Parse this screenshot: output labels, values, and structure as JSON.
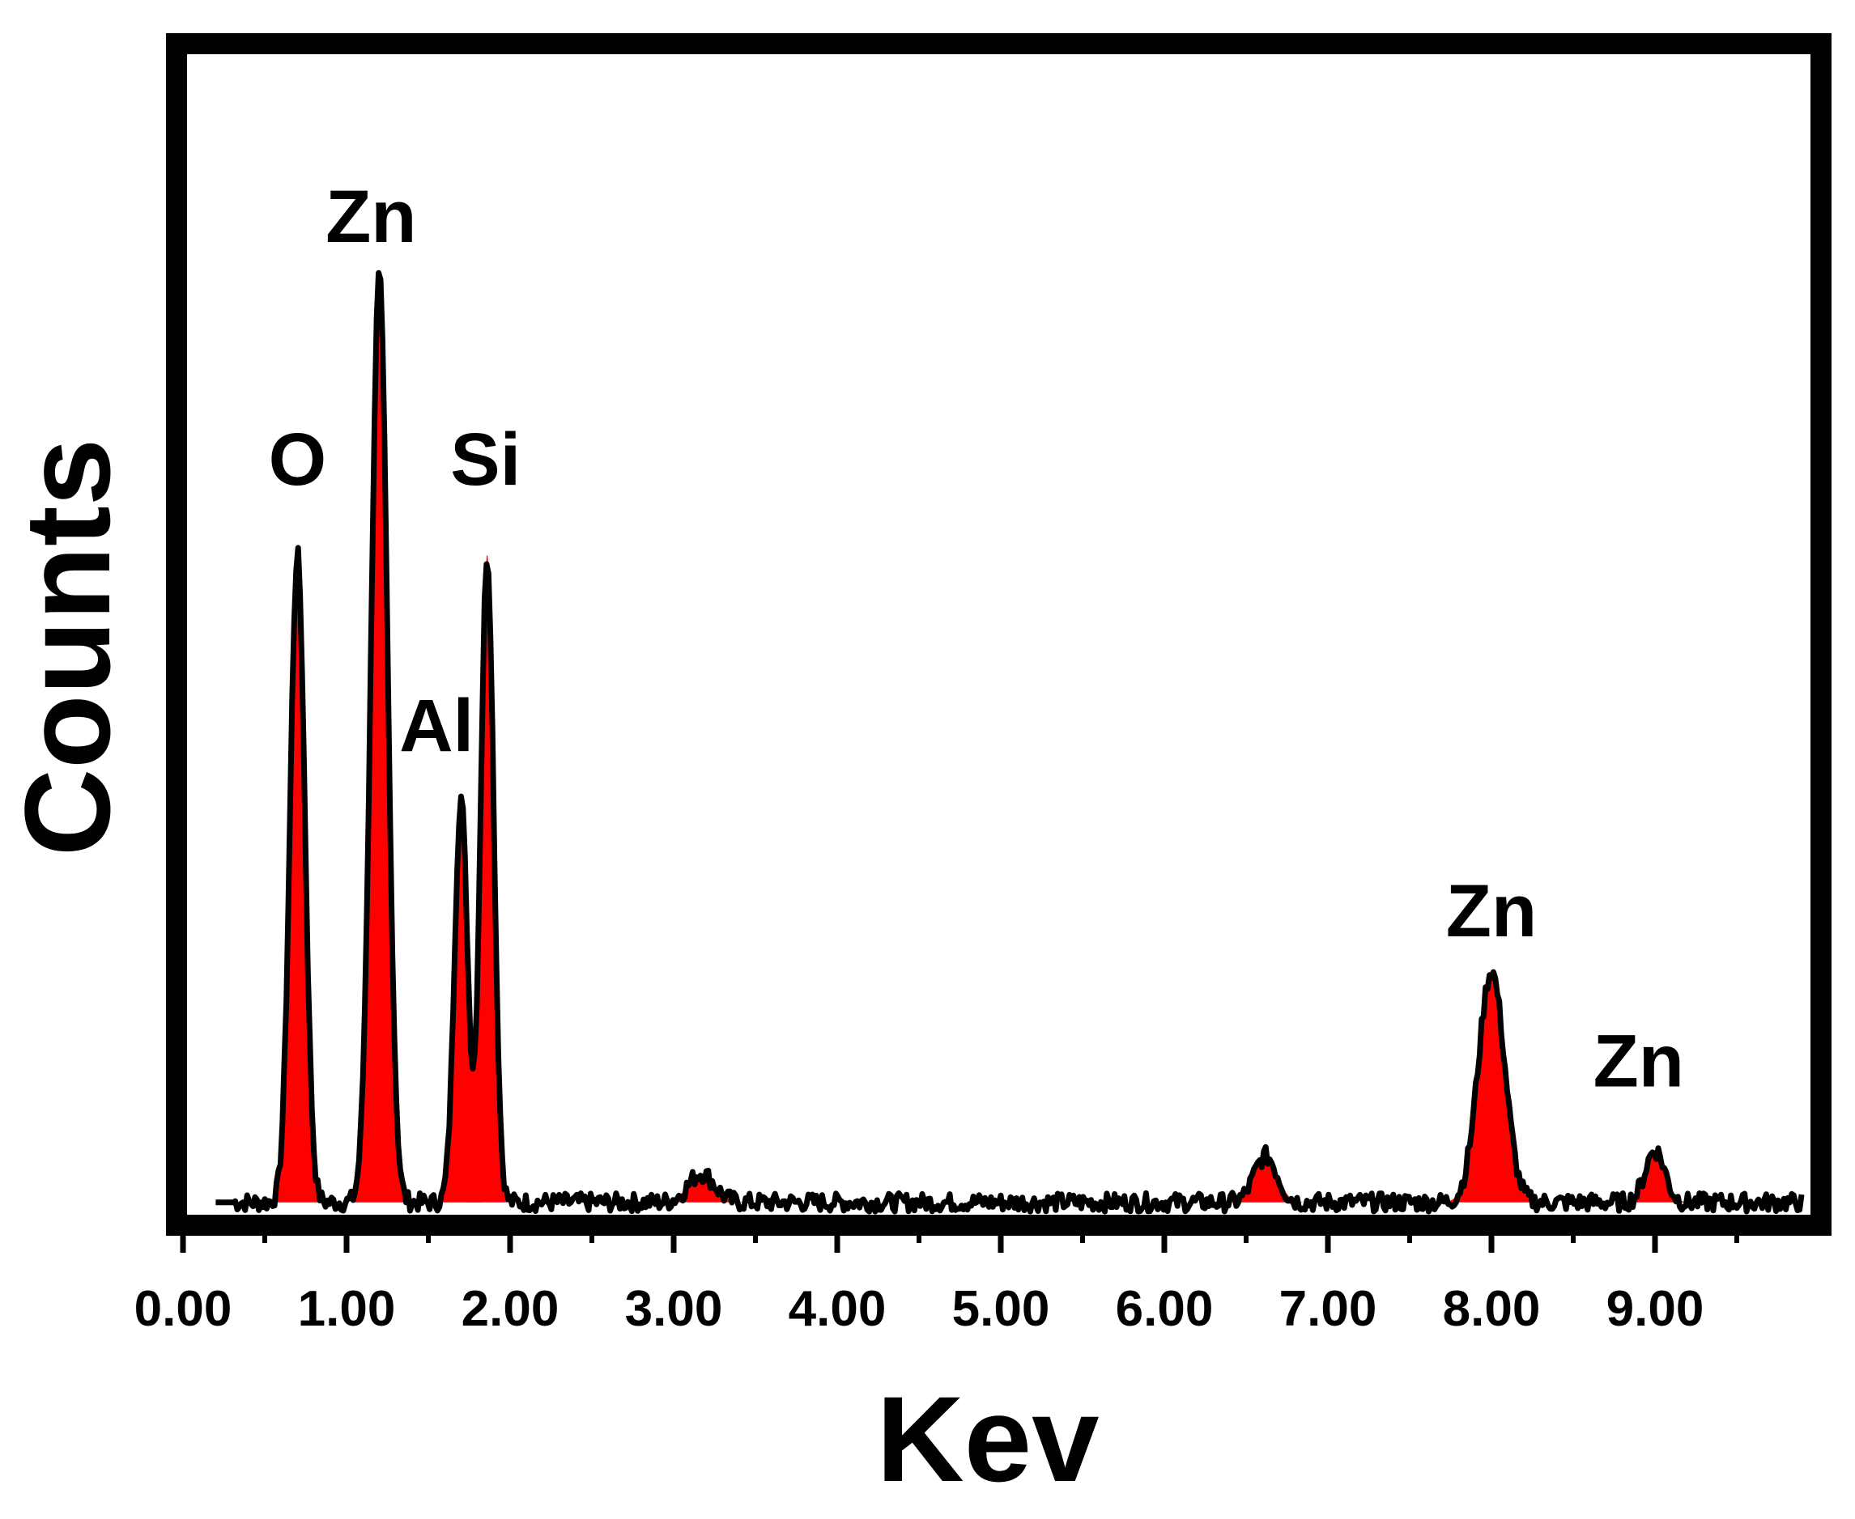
{
  "chart_data": {
    "type": "area",
    "title": "",
    "xlabel": "Kev",
    "ylabel": "Counts",
    "xlim": [
      0,
      10
    ],
    "ylim": [
      0,
      100
    ],
    "x_tick_labels": [
      "0.00",
      "1.00",
      "2.00",
      "3.00",
      "4.00",
      "5.00",
      "6.00",
      "7.00",
      "8.00",
      "9.00"
    ],
    "y_tick_labels": [],
    "grid": false,
    "fill_color": "#ff0000",
    "line_color": "#000000",
    "baseline": 1,
    "peaks": [
      {
        "element": "O",
        "energy": 0.7,
        "height": 56,
        "width": 0.045
      },
      {
        "element": "Zn",
        "energy": 1.2,
        "height": 80,
        "width": 0.05
      },
      {
        "element": "Al",
        "energy": 1.7,
        "height": 35,
        "width": 0.04
      },
      {
        "element": "Si",
        "energy": 1.86,
        "height": 56,
        "width": 0.04
      },
      {
        "element": "",
        "energy": 3.17,
        "height": 2.5,
        "width": 0.08
      },
      {
        "element": "",
        "energy": 6.62,
        "height": 4,
        "width": 0.07
      },
      {
        "element": "Zn",
        "energy": 8.0,
        "height": 20,
        "width": 0.08
      },
      {
        "element": "Zn",
        "energy": 9.0,
        "height": 4.5,
        "width": 0.06
      }
    ],
    "annotations": [
      {
        "text": "O",
        "energy": 0.7,
        "y": 63
      },
      {
        "text": "Zn",
        "energy": 1.15,
        "y": 84
      },
      {
        "text": "Al",
        "energy": 1.55,
        "y": 40
      },
      {
        "text": "Si",
        "energy": 1.85,
        "y": 63
      },
      {
        "text": "Zn",
        "energy": 8.0,
        "y": 24
      },
      {
        "text": "Zn",
        "energy": 8.9,
        "y": 11
      }
    ]
  }
}
